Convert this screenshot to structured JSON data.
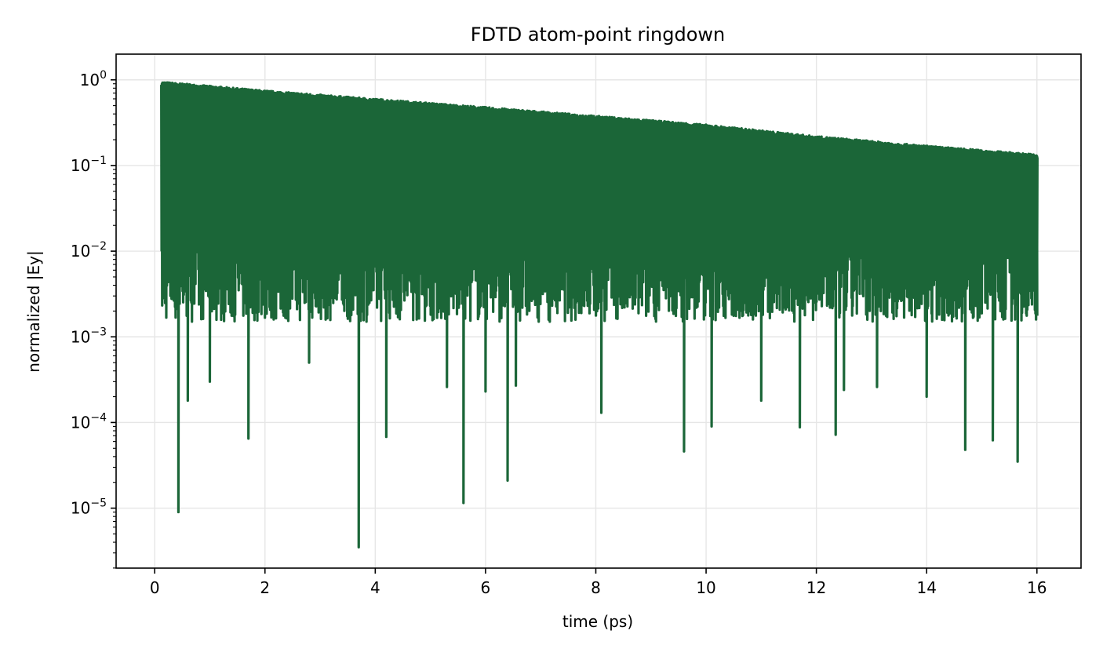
{
  "chart_data": {
    "type": "line",
    "title": "FDTD atom-point ringdown",
    "xlabel": "time (ps)",
    "ylabel": "normalized |Ey|",
    "xlim": [
      -0.7,
      16.8
    ],
    "ylim_log10": [
      -5.7,
      0.3
    ],
    "y_scale": "log",
    "grid": true,
    "x_ticks": [
      0,
      2,
      4,
      6,
      8,
      10,
      12,
      14,
      16
    ],
    "x_tick_labels": [
      "0",
      "2",
      "4",
      "6",
      "8",
      "10",
      "12",
      "14",
      "16"
    ],
    "y_ticks_log10": [
      0,
      -1,
      -2,
      -3,
      -4,
      -5
    ],
    "y_tick_labels": [
      {
        "base": "10",
        "exp": "0"
      },
      {
        "base": "10",
        "exp": "−1"
      },
      {
        "base": "10",
        "exp": "−2"
      },
      {
        "base": "10",
        "exp": "−3"
      },
      {
        "base": "10",
        "exp": "−4"
      },
      {
        "base": "10",
        "exp": "−5"
      }
    ],
    "series": [
      {
        "color": "#1b6638",
        "envelope_peak": [
          {
            "t": 0.12,
            "value": 0.95
          },
          {
            "t": 2.0,
            "value": 0.75
          },
          {
            "t": 4.0,
            "value": 0.6
          },
          {
            "t": 6.0,
            "value": 0.48
          },
          {
            "t": 8.0,
            "value": 0.38
          },
          {
            "t": 10.0,
            "value": 0.3
          },
          {
            "t": 12.0,
            "value": 0.22
          },
          {
            "t": 14.0,
            "value": 0.17
          },
          {
            "t": 16.0,
            "value": 0.135
          }
        ],
        "deep_minima": [
          {
            "t": 0.18,
            "value": 0.0028
          },
          {
            "t": 0.43,
            "value": 9e-06
          },
          {
            "t": 0.6,
            "value": 0.00018
          },
          {
            "t": 1.0,
            "value": 0.0003
          },
          {
            "t": 1.7,
            "value": 6.5e-05
          },
          {
            "t": 2.8,
            "value": 0.0005
          },
          {
            "t": 3.7,
            "value": 3.5e-06
          },
          {
            "t": 4.2,
            "value": 6.8e-05
          },
          {
            "t": 5.3,
            "value": 0.00026
          },
          {
            "t": 5.6,
            "value": 1.15e-05
          },
          {
            "t": 6.0,
            "value": 0.00023
          },
          {
            "t": 6.4,
            "value": 2.1e-05
          },
          {
            "t": 6.55,
            "value": 0.00027
          },
          {
            "t": 8.1,
            "value": 0.00013
          },
          {
            "t": 9.6,
            "value": 4.6e-05
          },
          {
            "t": 10.1,
            "value": 9e-05
          },
          {
            "t": 11.0,
            "value": 0.00018
          },
          {
            "t": 11.7,
            "value": 8.8e-05
          },
          {
            "t": 12.35,
            "value": 7.2e-05
          },
          {
            "t": 12.5,
            "value": 0.00024
          },
          {
            "t": 13.1,
            "value": 0.00026
          },
          {
            "t": 14.0,
            "value": 0.0002
          },
          {
            "t": 14.7,
            "value": 4.8e-05
          },
          {
            "t": 15.2,
            "value": 6.2e-05
          },
          {
            "t": 15.65,
            "value": 3.5e-05
          },
          {
            "t": 16.0,
            "value": 0.003
          }
        ],
        "t_start": 0.12,
        "t_end": 16.0,
        "floor_band": [
          0.0015,
          0.012
        ]
      }
    ]
  }
}
